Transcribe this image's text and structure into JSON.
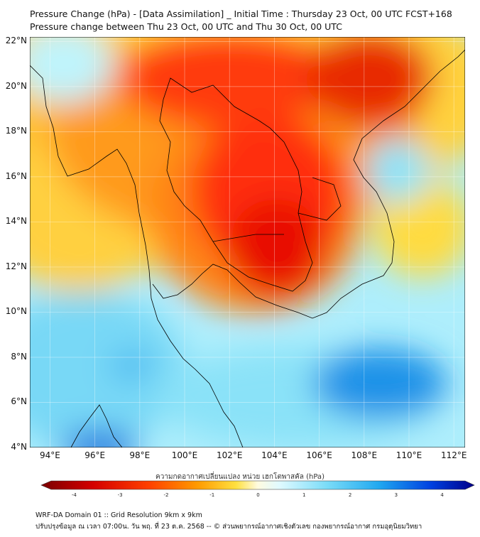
{
  "title": {
    "line1": "Pressure Change (hPa) - [Data Assimilation] _ Initial Time : Thursday 23 Oct, 00 UTC FCST+168",
    "line2": "Pressure change between Thu 23 Oct, 00 UTC and Thu 30 Oct, 00 UTC"
  },
  "map": {
    "lat_labels": [
      "22°N",
      "20°N",
      "18°N",
      "16°N",
      "14°N",
      "12°N",
      "10°N",
      "8°N",
      "6°N",
      "4°N"
    ],
    "lon_labels": [
      "94°E",
      "96°E",
      "98°E",
      "100°E",
      "102°E",
      "104°E",
      "106°E",
      "108°E",
      "110°E",
      "112°E"
    ],
    "lat_range": [
      4,
      22.2
    ],
    "lon_range": [
      93.1,
      112.5
    ],
    "field_unit": "hPa",
    "field_range": [
      -4,
      4.5
    ],
    "color_scale": {
      "neg_strong": "#8b0000",
      "neg": "#ff2000",
      "neutral_neg": "#ffe030",
      "neutral_pos": "#d8f8ff",
      "pos": "#1098f0",
      "pos_strong": "#0000c0"
    }
  },
  "colorbar": {
    "label": "ความกดอากาศเปลี่ยนแปลง หน่วย เฮกโตพาสคัล (hPa)",
    "ticks": [
      "-4",
      "-3",
      "-2",
      "-1",
      "0",
      "1",
      "2",
      "3",
      "4"
    ],
    "min": -4.5,
    "max": 4.5
  },
  "footer": {
    "line1": "WRF-DA Domain 01 :: Grid Resolution 9km x 9km",
    "line2": "ปรับปรุงข้อมูล ณ เวลา 07:00น. วัน พฤ. ที่ 23 ต.ค. 2568 -- © ส่วนพยากรณ์อากาศเชิงตัวเลข กองพยากรณ์อากาศ กรมอุตุนิยมวิทยา"
  }
}
